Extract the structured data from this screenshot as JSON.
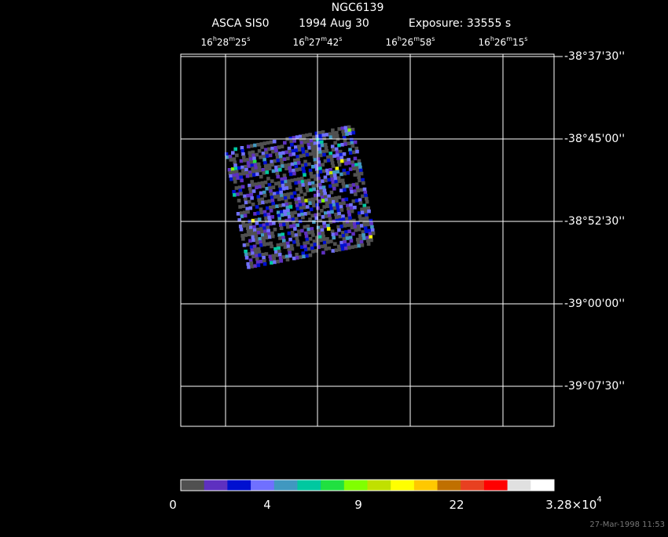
{
  "header": {
    "title": "NGC6139",
    "instrument": "ASCA SIS0",
    "date": "1994 Aug 30",
    "exposure": "Exposure: 33555 s"
  },
  "ra_labels": [
    [
      "16",
      "h",
      "28",
      "m",
      "25",
      "s"
    ],
    [
      "16",
      "h",
      "27",
      "m",
      "42",
      "s"
    ],
    [
      "16",
      "h",
      "26",
      "m",
      "58",
      "s"
    ],
    [
      "16",
      "h",
      "26",
      "m",
      "15",
      "s"
    ]
  ],
  "dec_labels": [
    "-38°37'30''",
    "-38°45'00''",
    "-38°52'30''",
    "-39°00'00''",
    "-39°07'30''"
  ],
  "colorbar": {
    "colors": [
      "#505050",
      "#5e30c0",
      "#0010d0",
      "#7070ff",
      "#4098c0",
      "#00c8a0",
      "#20e040",
      "#80ff00",
      "#c0e000",
      "#ffff00",
      "#ffc800",
      "#c07000",
      "#e84020",
      "#ff0000",
      "#e0e0e0",
      "#ffffff"
    ],
    "labels": [
      [
        "0"
      ],
      [
        "4"
      ],
      [
        "9"
      ],
      [
        "22"
      ],
      [
        "3.28×10",
        "4"
      ]
    ]
  },
  "timestamp": "27-Mar-1998 11:53"
}
